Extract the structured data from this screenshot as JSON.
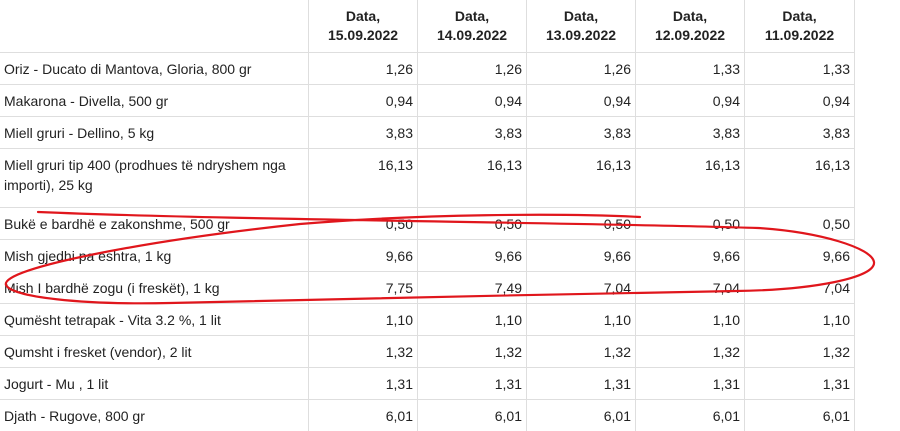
{
  "table": {
    "headers": [
      {
        "line1": "Data,",
        "line2": "15.09.2022"
      },
      {
        "line1": "Data,",
        "line2": "14.09.2022"
      },
      {
        "line1": "Data,",
        "line2": "13.09.2022"
      },
      {
        "line1": "Data,",
        "line2": "12.09.2022"
      },
      {
        "line1": "Data,",
        "line2": "11.09.2022"
      }
    ],
    "rows": [
      {
        "name": "Oriz - Ducato di Mantova, Gloria, 800 gr",
        "values": [
          "1,26",
          "1,26",
          "1,26",
          "1,33",
          "1,33"
        ]
      },
      {
        "name": "Makarona - Divella, 500 gr",
        "values": [
          "0,94",
          "0,94",
          "0,94",
          "0,94",
          "0,94"
        ]
      },
      {
        "name": "Miell gruri - Dellino, 5 kg",
        "values": [
          "3,83",
          "3,83",
          "3,83",
          "3,83",
          "3,83"
        ]
      },
      {
        "name": "Miell gruri tip 400 (prodhues të ndryshem nga importi), 25 kg",
        "values": [
          "16,13",
          "16,13",
          "16,13",
          "16,13",
          "16,13"
        ]
      },
      {
        "name": "Bukë e bardhë e zakonshme, 500 gr",
        "values": [
          "0,50",
          "0,50",
          "0,50",
          "0,50",
          "0,50"
        ]
      },
      {
        "name": "Mish gjedhi pa eshtra, 1 kg",
        "values": [
          "9,66",
          "9,66",
          "9,66",
          "9,66",
          "9,66"
        ]
      },
      {
        "name": "Mish I bardhë zogu (i freskët), 1 kg",
        "values": [
          "7,75",
          "7,49",
          "7,04",
          "7,04",
          "7,04"
        ]
      },
      {
        "name": "Qumësht tetrapak - Vita 3.2 %, 1 lit",
        "values": [
          "1,10",
          "1,10",
          "1,10",
          "1,10",
          "1,10"
        ]
      },
      {
        "name": "Qumsht i fresket (vendor), 2 lit",
        "values": [
          "1,32",
          "1,32",
          "1,32",
          "1,32",
          "1,32"
        ]
      },
      {
        "name": "Jogurt - Mu , 1 lit",
        "values": [
          "1,31",
          "1,31",
          "1,31",
          "1,31",
          "1,31"
        ]
      },
      {
        "name": "Djath - Rugove, 800 gr",
        "values": [
          "6,01",
          "6,01",
          "6,01",
          "6,01",
          "6,01"
        ]
      }
    ]
  },
  "annotation": {
    "shape": "hand-drawn ellipse",
    "color": "#e0161c",
    "marks_rows": [
      "Mish gjedhi pa eshtra, 1 kg",
      "Mish I bardhë zogu (i freskët), 1 kg"
    ]
  }
}
